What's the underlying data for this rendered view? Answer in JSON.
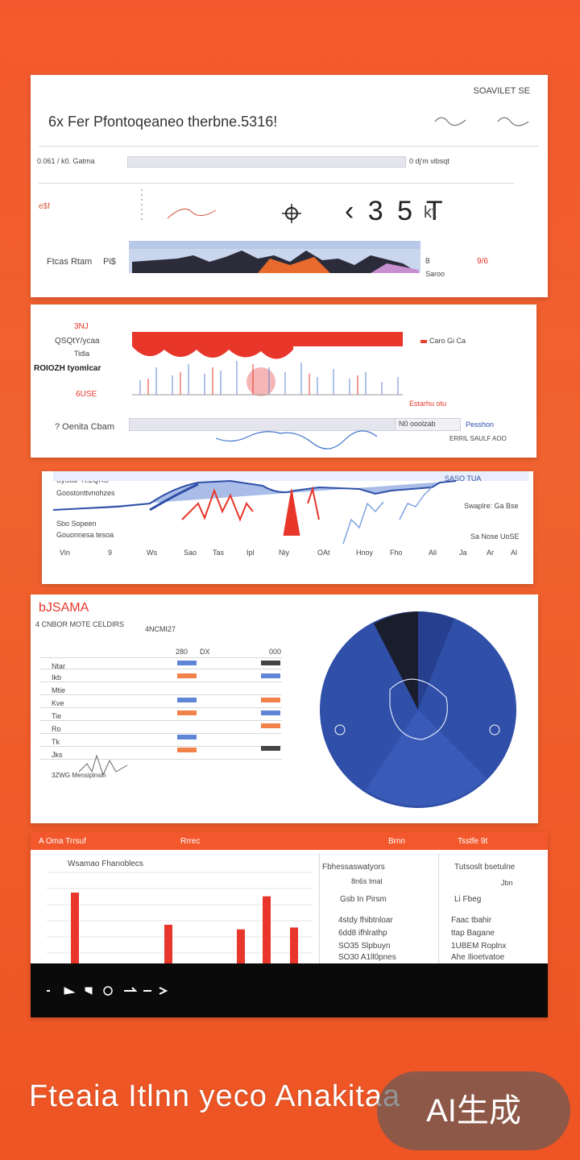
{
  "colors": {
    "background": "#f05a2a",
    "accent_red": "#e8362a",
    "accent_blue": "#2f4fa8",
    "panel": "#ffffff",
    "footer": "#0a0a0a"
  },
  "panel1": {
    "corner_label": "SOAVILET SE",
    "title": "6x Fer Pfontoqeaneo therbne.5316!",
    "row_label_left": "0.061 / k0. Gatma",
    "row_value_right": "0 dj'm vibsqt",
    "side_label": "e$f",
    "big_readout": "‹ 3 5 T",
    "readout_suffix": "kt",
    "range_label_left": "Ftcas Rtam",
    "range_value": "Pi$",
    "range_right_top": "8",
    "range_right_bottom": "Saroo",
    "range_flag": "9/6"
  },
  "panel2": {
    "label_top": "3NJ",
    "label_mid": "QSQtY/ycaa",
    "label_small": "Tidla",
    "label_bold": "ROIOZH tyomlcar",
    "label_red": "6USE",
    "legend": "Caro Gi Ca",
    "legend_right": "Estarhu otu",
    "row2_label": "? Oenita Cbam",
    "row2_value": "N0 ooolzab",
    "row2_right": "Pesshon",
    "row2_sub": "ERRIL SAULF AOO"
  },
  "panel3": {
    "legend_top": "SyStar Tt.ZQRS",
    "legend_mid": "Goostonttvnohzes",
    "legend_low": "Sbo Sopeen",
    "legend_low2": "Gouonnesa tesoa",
    "right_top": "SASO TUA",
    "right_mid": "Swaplre: Ga Bse",
    "right_low": "Sa Nose UoSE",
    "x_ticks": [
      "Vin",
      "9",
      "Ws",
      "Sao",
      "Tas",
      "Ipl",
      "Niy",
      "OAt",
      "Hnoy",
      "Fho",
      "Ali",
      "Ja",
      "Ar",
      "Al"
    ]
  },
  "panel4": {
    "title": "bJSAMA",
    "subtitle": "4 CNBOR MOTE CELDIRS",
    "col_head_mid": "4NCMI27",
    "col_heads": [
      "280",
      "DX",
      "000"
    ],
    "row_labels": [
      "Ntar",
      "Ikb",
      "Mtie",
      "Kve",
      "Tie",
      "Ro",
      "Tk",
      "Jks"
    ],
    "sparkline_label": "3ZWG Mensiplnsin"
  },
  "panel5": {
    "header_left": "A  Oma  Trrsuf",
    "header_mid": "Rrrec",
    "header_right": "Brnn",
    "header_far": "Tsstfe 9t",
    "chart_title": "Wsamao Fhanoblecs",
    "col2_title": "Fbhessaswatyors",
    "col2_sub": "8n6s lmal",
    "col2_label": "Gsb In Pirsm",
    "col2_items": [
      "4stdy fhibtnloar",
      "6dd8 ifhlrathp",
      "SO35 Slpbuyn",
      "SO30 A1ll0pnes"
    ],
    "col3_title": "Tutsoslt bsetulne",
    "col3_sub": "Jbn",
    "col3_label": "Li Fbeg",
    "col3_items": [
      "Faac tbahir",
      "ttap Bagane",
      "1UBEM Roplnx",
      "Ahe Ilioetvatoe"
    ],
    "bar_values": [
      0.78,
      0.43,
      0.38,
      0.74,
      0.4
    ],
    "footer_icons": [
      "arrow-left",
      "arrow-diag",
      "cup",
      "arrow-right",
      "arrow-right",
      "arrow-right"
    ]
  },
  "bottom_title": "Fteaia Itlnn yeco Anakitaa",
  "watermark": "AI生成"
}
